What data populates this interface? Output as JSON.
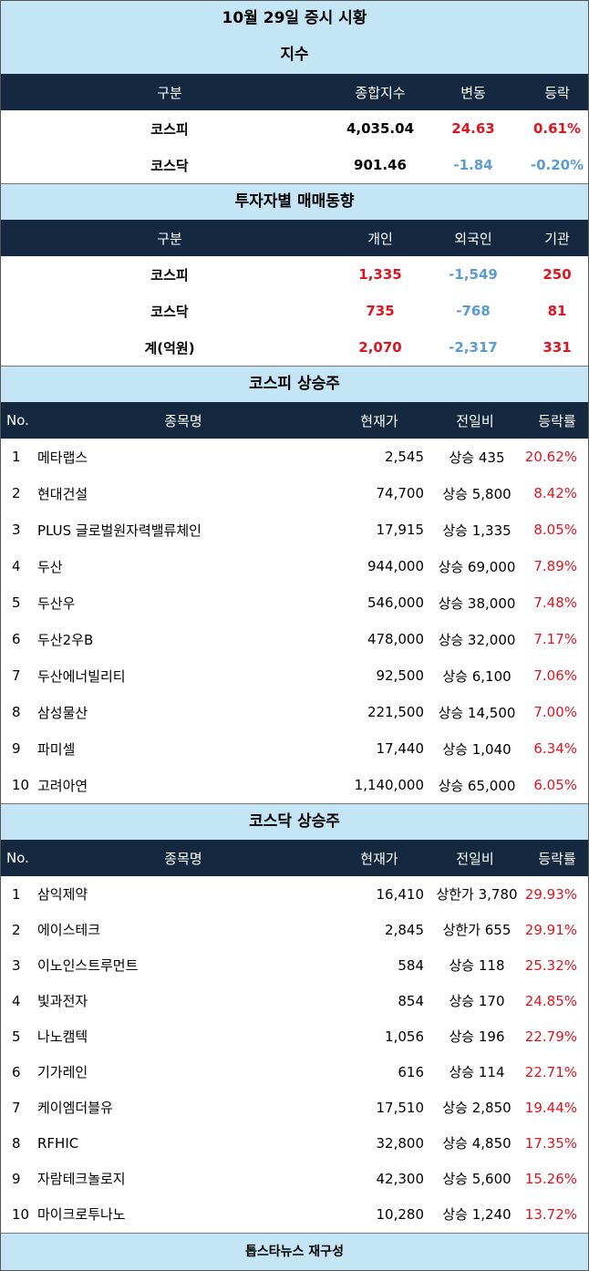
{
  "title": "10월 29일 증시 시황",
  "index_section": {
    "title": "지수",
    "headers": [
      "구분",
      "종합지수",
      "변동",
      "등락"
    ],
    "rows": [
      {
        "name": "코스피",
        "value": "4,035.04",
        "change": "24.63",
        "rate": "0.61%",
        "dir": "up"
      },
      {
        "name": "코스닥",
        "value": "901.46",
        "change": "-1.84",
        "rate": "-0.20%",
        "dir": "down"
      }
    ]
  },
  "investor_section": {
    "title": "투자자별 매매동향",
    "headers": [
      "구분",
      "개인",
      "외국인",
      "기관"
    ],
    "rows": [
      {
        "name": "코스피",
        "individual": "1,335",
        "foreign": "-1,549",
        "institution": "250"
      },
      {
        "name": "코스닥",
        "individual": "735",
        "foreign": "-768",
        "institution": "81"
      },
      {
        "name": "계(억원)",
        "individual": "2,070",
        "foreign": "-2,317",
        "institution": "331"
      }
    ]
  },
  "kospi_gainers": {
    "title": "코스피 상승주",
    "headers": [
      "No.",
      "종목명",
      "현재가",
      "전일비",
      "등락률"
    ],
    "rows": [
      {
        "no": "1",
        "name": "메타랩스",
        "price": "2,545",
        "change": "상승 435",
        "rate": "20.62%"
      },
      {
        "no": "2",
        "name": "현대건설",
        "price": "74,700",
        "change": "상승 5,800",
        "rate": "8.42%"
      },
      {
        "no": "3",
        "name": "PLUS 글로벌원자력밸류체인",
        "price": "17,915",
        "change": "상승 1,335",
        "rate": "8.05%"
      },
      {
        "no": "4",
        "name": "두산",
        "price": "944,000",
        "change": "상승 69,000",
        "rate": "7.89%"
      },
      {
        "no": "5",
        "name": "두산우",
        "price": "546,000",
        "change": "상승 38,000",
        "rate": "7.48%"
      },
      {
        "no": "6",
        "name": "두산2우B",
        "price": "478,000",
        "change": "상승 32,000",
        "rate": "7.17%"
      },
      {
        "no": "7",
        "name": "두산에너빌리티",
        "price": "92,500",
        "change": "상승 6,100",
        "rate": "7.06%"
      },
      {
        "no": "8",
        "name": "삼성물산",
        "price": "221,500",
        "change": "상승 14,500",
        "rate": "7.00%"
      },
      {
        "no": "9",
        "name": "파미셀",
        "price": "17,440",
        "change": "상승 1,040",
        "rate": "6.34%"
      },
      {
        "no": "10",
        "name": "고려아연",
        "price": "1,140,000",
        "change": "상승 65,000",
        "rate": "6.05%"
      }
    ]
  },
  "kosdaq_gainers": {
    "title": "코스닥 상승주",
    "headers": [
      "No.",
      "종목명",
      "현재가",
      "전일비",
      "등락률"
    ],
    "rows": [
      {
        "no": "1",
        "name": "삼익제약",
        "price": "16,410",
        "change": "상한가 3,780",
        "rate": "29.93%"
      },
      {
        "no": "2",
        "name": "에이스테크",
        "price": "2,845",
        "change": "상한가 655",
        "rate": "29.91%"
      },
      {
        "no": "3",
        "name": "이노인스트루먼트",
        "price": "584",
        "change": "상승 118",
        "rate": "25.32%"
      },
      {
        "no": "4",
        "name": "빛과전자",
        "price": "854",
        "change": "상승 170",
        "rate": "24.85%"
      },
      {
        "no": "5",
        "name": "나노캠텍",
        "price": "1,056",
        "change": "상승 196",
        "rate": "22.79%"
      },
      {
        "no": "6",
        "name": "기가레인",
        "price": "616",
        "change": "상승 114",
        "rate": "22.71%"
      },
      {
        "no": "7",
        "name": "케이엠더블유",
        "price": "17,510",
        "change": "상승 2,850",
        "rate": "19.44%"
      },
      {
        "no": "8",
        "name": "RFHIC",
        "price": "32,800",
        "change": "상승 4,850",
        "rate": "17.35%"
      },
      {
        "no": "9",
        "name": "자람테크놀로지",
        "price": "42,300",
        "change": "상승 5,600",
        "rate": "15.26%"
      },
      {
        "no": "10",
        "name": "마이크로투나노",
        "price": "10,280",
        "change": "상승 1,240",
        "rate": "13.72%"
      }
    ]
  },
  "footer": "톱스타뉴스 재구성",
  "colors": {
    "up": "#e0141e",
    "down": "#5b9bd5",
    "header_bg": "#14283f",
    "band_bg": "#c3e5f5"
  }
}
